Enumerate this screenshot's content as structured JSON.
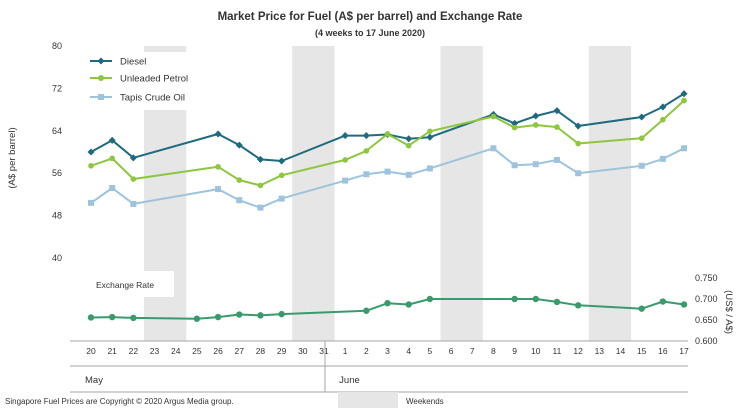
{
  "chart_data": {
    "type": "line",
    "title": "Market Price for Fuel (A$ per barrel) and Exchange  Rate",
    "subtitle": "(4 weeks to 17 June 2020)",
    "ylabel": "(A$ per barrel)",
    "y2label": "(US$ / A$)",
    "ylim": [
      32,
      80
    ],
    "yticks": [
      "80",
      "72",
      "64",
      "56",
      "48",
      "40"
    ],
    "y2lim": [
      0.6,
      0.75
    ],
    "y2ticks": [
      "0.750",
      "0.700",
      "0.650",
      "0.600"
    ],
    "x_days": [
      20,
      21,
      22,
      23,
      24,
      25,
      26,
      27,
      28,
      29,
      30,
      31,
      1,
      2,
      3,
      4,
      5,
      6,
      7,
      8,
      9,
      10,
      11,
      12,
      13,
      14,
      15,
      16,
      17
    ],
    "x_tick_labels": [
      "20",
      "21",
      "22",
      "23",
      "24",
      "25",
      "26",
      "27",
      "28",
      "29",
      "30",
      "31",
      "1",
      "2",
      "3",
      "4",
      "5",
      "6",
      "7",
      "8",
      "9",
      "10",
      "11",
      "12",
      "13",
      "14",
      "15",
      "16",
      "17"
    ],
    "month_labels": [
      {
        "label": "May",
        "start_index": 0
      },
      {
        "label": "June",
        "start_index": 12
      }
    ],
    "weekend_ranges": [
      [
        3,
        4
      ],
      [
        10,
        11
      ],
      [
        17,
        18
      ],
      [
        24,
        25
      ]
    ],
    "series": [
      {
        "name": "Diesel",
        "color": "#1e6b7f",
        "marker": "diamond",
        "points": [
          [
            0,
            60.0
          ],
          [
            1,
            62.2
          ],
          [
            2,
            58.9
          ],
          [
            6,
            63.4
          ],
          [
            7,
            61.3
          ],
          [
            8,
            58.6
          ],
          [
            9,
            58.3
          ],
          [
            12,
            63.1
          ],
          [
            13,
            63.1
          ],
          [
            14,
            63.3
          ],
          [
            15,
            62.5
          ],
          [
            16,
            62.8
          ],
          [
            19,
            67.1
          ],
          [
            20,
            65.4
          ],
          [
            21,
            66.8
          ],
          [
            22,
            67.8
          ],
          [
            23,
            64.9
          ],
          [
            26,
            66.6
          ],
          [
            27,
            68.5
          ],
          [
            28,
            71.0
          ]
        ]
      },
      {
        "name": "Unleaded Petrol",
        "color": "#8dc63f",
        "marker": "circle",
        "points": [
          [
            0,
            57.4
          ],
          [
            1,
            58.8
          ],
          [
            2,
            54.9
          ],
          [
            6,
            57.2
          ],
          [
            7,
            54.7
          ],
          [
            8,
            53.7
          ],
          [
            9,
            55.6
          ],
          [
            12,
            58.5
          ],
          [
            13,
            60.2
          ],
          [
            14,
            63.4
          ],
          [
            15,
            61.2
          ],
          [
            16,
            63.9
          ],
          [
            19,
            66.7
          ],
          [
            20,
            64.6
          ],
          [
            21,
            65.1
          ],
          [
            22,
            64.7
          ],
          [
            23,
            61.6
          ],
          [
            26,
            62.6
          ],
          [
            27,
            66.1
          ],
          [
            28,
            69.7
          ]
        ]
      },
      {
        "name": "Tapis Crude Oil",
        "color": "#9ec3dc",
        "marker": "square",
        "points": [
          [
            0,
            50.4
          ],
          [
            1,
            53.2
          ],
          [
            2,
            50.2
          ],
          [
            6,
            53.0
          ],
          [
            7,
            50.9
          ],
          [
            8,
            49.5
          ],
          [
            9,
            51.2
          ],
          [
            12,
            54.6
          ],
          [
            13,
            55.8
          ],
          [
            14,
            56.3
          ],
          [
            15,
            55.7
          ],
          [
            16,
            56.9
          ],
          [
            19,
            60.7
          ],
          [
            20,
            57.5
          ],
          [
            21,
            57.7
          ],
          [
            22,
            58.5
          ],
          [
            23,
            56.0
          ],
          [
            26,
            57.4
          ],
          [
            27,
            58.7
          ],
          [
            28,
            60.7
          ]
        ]
      },
      {
        "name": "Exchange  Rate",
        "color": "#3a9a6e",
        "marker": "circle",
        "axis": "right",
        "points": [
          [
            0,
            0.656
          ],
          [
            1,
            0.657
          ],
          [
            2,
            0.655
          ],
          [
            5,
            0.653
          ],
          [
            6,
            0.657
          ],
          [
            7,
            0.663
          ],
          [
            8,
            0.661
          ],
          [
            9,
            0.664
          ],
          [
            13,
            0.672
          ],
          [
            14,
            0.69
          ],
          [
            15,
            0.687
          ],
          [
            16,
            0.7
          ],
          [
            20,
            0.7
          ],
          [
            21,
            0.7
          ],
          [
            22,
            0.693
          ],
          [
            23,
            0.685
          ],
          [
            26,
            0.677
          ],
          [
            27,
            0.694
          ],
          [
            28,
            0.687
          ]
        ],
        "markers_at": [
          0,
          1,
          2,
          5,
          6,
          7,
          8,
          9,
          13,
          14,
          15,
          16,
          20,
          21,
          22,
          23,
          26,
          27,
          28
        ]
      }
    ],
    "exchange_label": "Exchange  Rate"
  },
  "legend": {
    "diesel": "Diesel",
    "unleaded": "Unleaded Petrol",
    "tapis": "Tapis Crude Oil",
    "weekends": "Weekends"
  },
  "footer": {
    "copyright": "Singapore  Fuel Prices are Copyright © 2020  Argus Media group."
  },
  "colors": {
    "weekend_band": "#e6e6e6",
    "axis": "#a6a6a6"
  }
}
